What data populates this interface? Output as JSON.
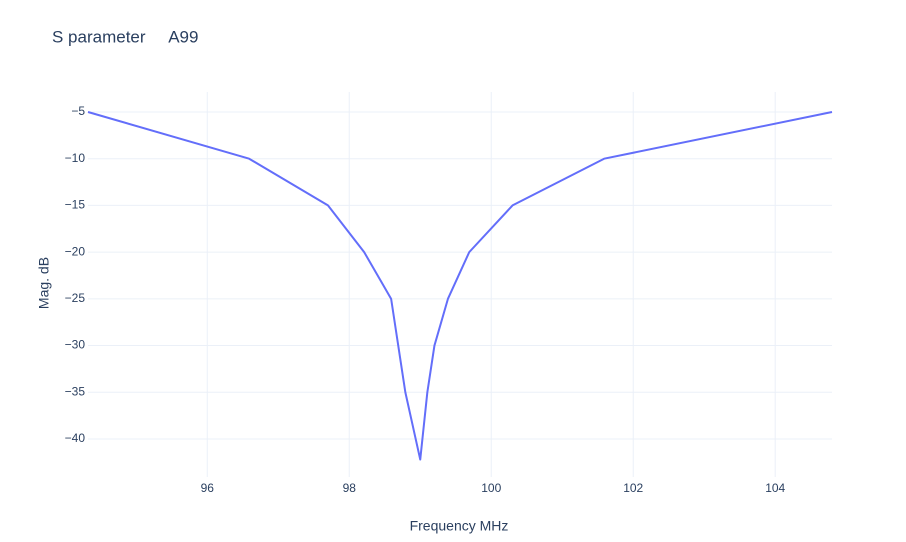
{
  "chart_data": {
    "type": "line",
    "title": "S parameter     A99",
    "x_label": "Frequency MHz",
    "y_label": "Mag. dB",
    "x": [
      94.32,
      96.59,
      97.7,
      98.21,
      98.59,
      98.79,
      99.0,
      99.1,
      99.2,
      99.39,
      99.69,
      100.3,
      101.59,
      104.8
    ],
    "series": [
      {
        "color": "#636efa",
        "values": [
          -5,
          -10,
          -15,
          -20,
          -25,
          -35,
          -42.2,
          -35,
          -30,
          -25,
          -20,
          -15,
          -10,
          -5
        ]
      }
    ],
    "xlim": [
      94.32,
      104.8
    ],
    "xticks": [
      96,
      98,
      100,
      102,
      104
    ],
    "ylim": [
      -44.07,
      -2.86
    ],
    "yticks": [
      {
        "value": -5,
        "label": "−5"
      },
      {
        "value": -10,
        "label": "−10"
      },
      {
        "value": -15,
        "label": "−15"
      },
      {
        "value": -20,
        "label": "−20"
      },
      {
        "value": -25,
        "label": "−25"
      },
      {
        "value": -30,
        "label": "−30"
      },
      {
        "value": -35,
        "label": "−35"
      },
      {
        "value": -40,
        "label": "−40"
      }
    ],
    "grid": true
  }
}
